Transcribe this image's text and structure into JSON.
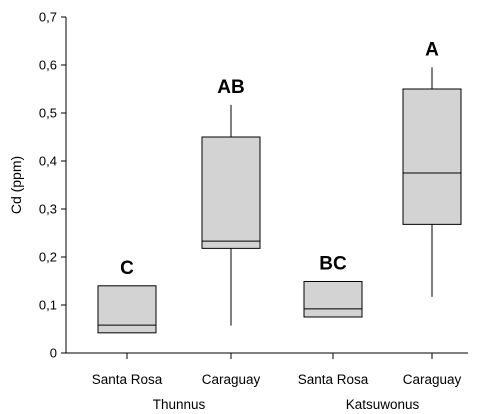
{
  "chart_data": {
    "type": "box",
    "ylabel": "Cd (ppm)",
    "ylim": [
      0,
      0.7
    ],
    "yticks": [
      "0",
      "0,1",
      "0,2",
      "0,3",
      "0,4",
      "0,5",
      "0,6",
      "0,7"
    ],
    "categories": [
      "Santa Rosa",
      "Caraguay",
      "Santa Rosa",
      "Caraguay"
    ],
    "groups": [
      {
        "label": "Thunnus",
        "categories": [
          0,
          1
        ]
      },
      {
        "label": "Katsuwonus",
        "categories": [
          2,
          3
        ]
      }
    ],
    "boxes": [
      {
        "category": "Santa Rosa",
        "group": "Thunnus",
        "whisker_low": 0.042,
        "q1": 0.042,
        "median": 0.058,
        "q3": 0.14,
        "whisker_high": 0.14,
        "letter": "C"
      },
      {
        "category": "Caraguay",
        "group": "Thunnus",
        "whisker_low": 0.057,
        "q1": 0.218,
        "median": 0.233,
        "q3": 0.45,
        "whisker_high": 0.517,
        "letter": "AB"
      },
      {
        "category": "Santa Rosa",
        "group": "Katsuwonus",
        "whisker_low": 0.075,
        "q1": 0.075,
        "median": 0.092,
        "q3": 0.149,
        "whisker_high": 0.149,
        "letter": "BC"
      },
      {
        "category": "Caraguay",
        "group": "Katsuwonus",
        "whisker_low": 0.117,
        "q1": 0.268,
        "median": 0.375,
        "q3": 0.55,
        "whisker_high": 0.595,
        "letter": "A"
      }
    ],
    "colors": {
      "box_fill": "#d3d3d3",
      "stroke": "#000000"
    },
    "grid": false
  }
}
